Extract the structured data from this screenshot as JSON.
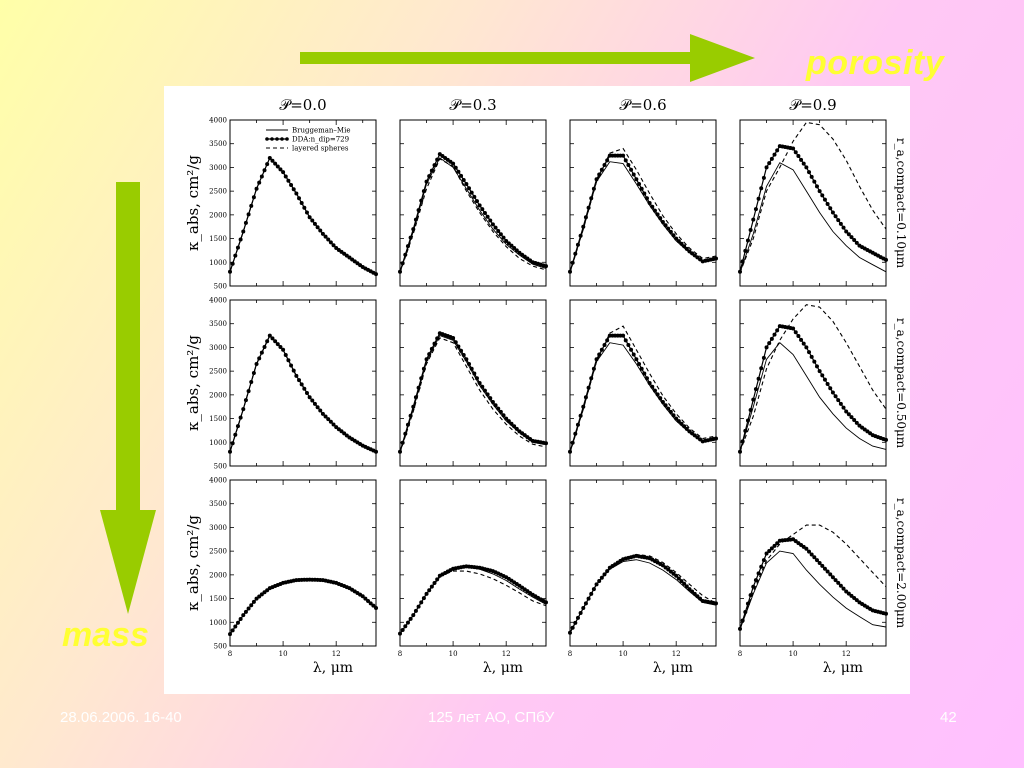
{
  "slide": {
    "porosity_label": "porosity",
    "mass_label": "mass",
    "footer_date": "28.06.2006. 16-40",
    "footer_center": "125 лет АО, СПбУ",
    "footer_page": "42",
    "arrow_color": "#99cc00",
    "label_color": "#ffff33"
  },
  "chart_data": {
    "type": "line",
    "layout": "3x4 grid",
    "column_titles": [
      "𝒫=0.0",
      "𝒫=0.3",
      "𝒫=0.6",
      "𝒫=0.9"
    ],
    "row_labels": [
      "r_a,compact=0.10μm",
      "r_a,compact=0.50μm",
      "r_a,compact=2.00μm"
    ],
    "ylabel": "κ_abs, cm²/g",
    "xlabel": "λ, μm",
    "xlim": [
      8,
      13.5
    ],
    "ylim": [
      500,
      4000
    ],
    "xticks": [
      8,
      10,
      12
    ],
    "yticks": [
      500,
      1000,
      1500,
      2000,
      2500,
      3000,
      3500,
      4000
    ],
    "legend": {
      "placement": "top-right of first panel",
      "entries": [
        "Bruggeman–Mie",
        "DDA:n_dip=729",
        "layered spheres"
      ]
    },
    "x": [
      8,
      8.5,
      9,
      9.5,
      10,
      10.5,
      11,
      11.5,
      12,
      12.5,
      13,
      13.5
    ],
    "panels": [
      {
        "row": 0,
        "col": 0,
        "series": [
          {
            "name": "Bruggeman–Mie",
            "values": [
              800,
              1650,
              2550,
              3200,
              2900,
              2450,
              1950,
              1600,
              1300,
              1100,
              900,
              750
            ]
          },
          {
            "name": "DDA:n_dip=729",
            "values": [
              800,
              1650,
              2550,
              3200,
              2900,
              2450,
              1950,
              1600,
              1300,
              1100,
              900,
              750
            ]
          },
          {
            "name": "layered spheres",
            "values": [
              800,
              1650,
              2550,
              3200,
              2900,
              2450,
              1950,
              1600,
              1300,
              1100,
              900,
              750
            ]
          }
        ]
      },
      {
        "row": 0,
        "col": 1,
        "series": [
          {
            "name": "Bruggeman–Mie",
            "values": [
              780,
              1650,
              2650,
              3200,
              3000,
              2550,
              2100,
              1700,
              1380,
              1150,
              960,
              870
            ]
          },
          {
            "name": "DDA:n_dip=729",
            "values": [
              800,
              1700,
              2700,
              3280,
              3080,
              2650,
              2200,
              1800,
              1450,
              1200,
              1000,
              920
            ]
          },
          {
            "name": "layered spheres",
            "values": [
              780,
              1600,
              2550,
              3180,
              3020,
              2500,
              2050,
              1650,
              1330,
              1080,
              920,
              840
            ]
          }
        ]
      },
      {
        "row": 0,
        "col": 2,
        "series": [
          {
            "name": "Bruggeman–Mie",
            "values": [
              780,
              1700,
              2700,
              3120,
              3080,
              2650,
              2200,
              1800,
              1450,
              1200,
              1000,
              1050
            ]
          },
          {
            "name": "DDA:n_dip=729",
            "values": [
              800,
              1750,
              2750,
              3250,
              3250,
              2750,
              2250,
              1850,
              1500,
              1230,
              1020,
              1080
            ]
          },
          {
            "name": "layered spheres",
            "values": [
              780,
              1700,
              2700,
              3300,
              3400,
              2950,
              2450,
              1980,
              1600,
              1300,
              1080,
              1130
            ]
          }
        ]
      },
      {
        "row": 0,
        "col": 3,
        "series": [
          {
            "name": "Bruggeman–Mie",
            "values": [
              780,
              1600,
              2600,
              3100,
              2950,
              2500,
              2050,
              1650,
              1350,
              1100,
              950,
              800
            ]
          },
          {
            "name": "DDA:n_dip=729",
            "values": [
              800,
              1900,
              3000,
              3450,
              3400,
              3000,
              2500,
              2050,
              1650,
              1350,
              1200,
              1050
            ]
          },
          {
            "name": "layered spheres",
            "values": [
              780,
              1500,
              2500,
              3000,
              3550,
              3950,
              3900,
              3600,
              3150,
              2600,
              2100,
              1700
            ]
          }
        ]
      },
      {
        "row": 1,
        "col": 0,
        "series": [
          {
            "name": "Bruggeman–Mie",
            "values": [
              800,
              1700,
              2650,
              3250,
              2950,
              2400,
              1950,
              1600,
              1320,
              1100,
              930,
              800
            ]
          },
          {
            "name": "DDA:n_dip=729",
            "values": [
              800,
              1700,
              2650,
              3250,
              2950,
              2400,
              1950,
              1600,
              1320,
              1100,
              930,
              800
            ]
          },
          {
            "name": "layered spheres",
            "values": [
              800,
              1700,
              2650,
              3250,
              2950,
              2400,
              1950,
              1600,
              1320,
              1100,
              930,
              800
            ]
          }
        ]
      },
      {
        "row": 1,
        "col": 1,
        "series": [
          {
            "name": "Bruggeman–Mie",
            "values": [
              780,
              1700,
              2700,
              3250,
              3150,
              2700,
              2200,
              1800,
              1450,
              1200,
              1000,
              950
            ]
          },
          {
            "name": "DDA:n_dip=729",
            "values": [
              800,
              1750,
              2750,
              3300,
              3200,
              2750,
              2250,
              1850,
              1500,
              1230,
              1030,
              980
            ]
          },
          {
            "name": "layered spheres",
            "values": [
              780,
              1650,
              2650,
              3200,
              3100,
              2600,
              2100,
              1700,
              1380,
              1130,
              960,
              900
            ]
          }
        ]
      },
      {
        "row": 1,
        "col": 2,
        "series": [
          {
            "name": "Bruggeman–Mie",
            "values": [
              780,
              1700,
              2700,
              3100,
              3050,
              2650,
              2200,
              1800,
              1450,
              1200,
              1000,
              1050
            ]
          },
          {
            "name": "DDA:n_dip=729",
            "values": [
              800,
              1750,
              2750,
              3250,
              3250,
              2750,
              2250,
              1850,
              1500,
              1230,
              1020,
              1080
            ]
          },
          {
            "name": "layered spheres",
            "values": [
              780,
              1700,
              2700,
              3300,
              3450,
              2950,
              2450,
              1980,
              1600,
              1300,
              1080,
              1130
            ]
          }
        ]
      },
      {
        "row": 1,
        "col": 3,
        "series": [
          {
            "name": "Bruggeman–Mie",
            "values": [
              800,
              1750,
              2750,
              3100,
              2850,
              2400,
              1950,
              1600,
              1300,
              1080,
              920,
              850
            ]
          },
          {
            "name": "DDA:n_dip=729",
            "values": [
              800,
              1900,
              3000,
              3450,
              3400,
              3000,
              2500,
              2050,
              1650,
              1350,
              1150,
              1050
            ]
          },
          {
            "name": "layered spheres",
            "values": [
              800,
              1550,
              2550,
              3150,
              3600,
              3900,
              3850,
              3550,
              3100,
              2600,
              2100,
              1700
            ]
          }
        ]
      },
      {
        "row": 2,
        "col": 0,
        "series": [
          {
            "name": "Bruggeman–Mie",
            "values": [
              750,
              1150,
              1500,
              1720,
              1830,
              1890,
              1900,
              1890,
              1830,
              1720,
              1550,
              1300
            ]
          },
          {
            "name": "DDA:n_dip=729",
            "values": [
              750,
              1150,
              1500,
              1720,
              1830,
              1890,
              1900,
              1890,
              1830,
              1720,
              1550,
              1300
            ]
          },
          {
            "name": "layered spheres",
            "values": [
              750,
              1150,
              1500,
              1720,
              1830,
              1890,
              1900,
              1890,
              1830,
              1720,
              1550,
              1300
            ]
          }
        ]
      },
      {
        "row": 2,
        "col": 1,
        "series": [
          {
            "name": "Bruggeman–Mie",
            "values": [
              760,
              1150,
              1600,
              1950,
              2120,
              2170,
              2120,
              2020,
              1880,
              1700,
              1530,
              1380
            ]
          },
          {
            "name": "DDA:n_dip=729",
            "values": [
              760,
              1150,
              1600,
              1980,
              2130,
              2180,
              2150,
              2080,
              1950,
              1770,
              1580,
              1420
            ]
          },
          {
            "name": "layered spheres",
            "values": [
              760,
              1150,
              1600,
              1970,
              2080,
              2080,
              2020,
              1920,
              1780,
              1620,
              1450,
              1350
            ]
          }
        ]
      },
      {
        "row": 2,
        "col": 2,
        "series": [
          {
            "name": "Bruggeman–Mie",
            "values": [
              780,
              1300,
              1800,
              2120,
              2280,
              2320,
              2250,
              2100,
              1900,
              1650,
              1420,
              1360
            ]
          },
          {
            "name": "DDA:n_dip=729",
            "values": [
              780,
              1300,
              1800,
              2150,
              2330,
              2400,
              2350,
              2200,
              1980,
              1700,
              1450,
              1400
            ]
          },
          {
            "name": "layered spheres",
            "values": [
              780,
              1300,
              1800,
              2150,
              2350,
              2430,
              2400,
              2260,
              2050,
              1800,
              1560,
              1400
            ]
          }
        ]
      },
      {
        "row": 2,
        "col": 3,
        "series": [
          {
            "name": "Bruggeman–Mie",
            "values": [
              850,
              1600,
              2250,
              2500,
              2450,
              2100,
              1800,
              1530,
              1300,
              1120,
              950,
              900
            ]
          },
          {
            "name": "DDA:n_dip=729",
            "values": [
              860,
              1750,
              2450,
              2720,
              2750,
              2550,
              2250,
              1950,
              1650,
              1420,
              1250,
              1180
            ]
          },
          {
            "name": "layered spheres",
            "values": [
              850,
              1650,
              2300,
              2650,
              2850,
              3050,
              3050,
              2900,
              2650,
              2350,
              2050,
              1750
            ]
          }
        ]
      }
    ]
  }
}
